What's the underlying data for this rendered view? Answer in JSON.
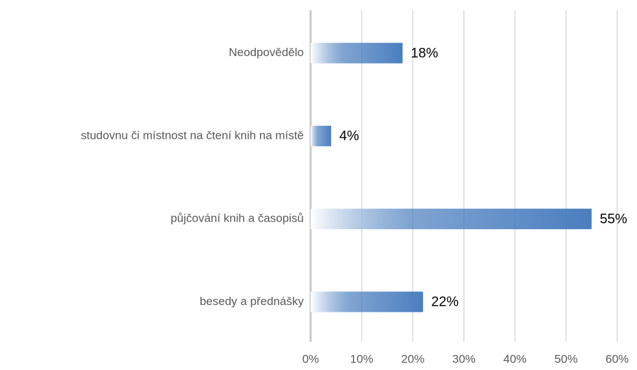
{
  "chart_data": {
    "type": "barh",
    "categories": [
      "Neodpovědělo",
      "studovnu či místnost na čtení knih na místě",
      "půjčování knih a časopisů",
      "besedy a přednášky"
    ],
    "values": [
      18,
      4,
      55,
      22
    ],
    "value_labels": [
      "18%",
      "4%",
      "55%",
      "22%"
    ],
    "color": "#4a7ebf",
    "xlim": [
      0,
      60
    ],
    "xticks": [
      {
        "value": 0,
        "label": "0%"
      },
      {
        "value": 10,
        "label": "10%"
      },
      {
        "value": 20,
        "label": "20%"
      },
      {
        "value": 30,
        "label": "30%"
      },
      {
        "value": 40,
        "label": "40%"
      },
      {
        "value": 50,
        "label": "50%"
      },
      {
        "value": 60,
        "label": "60%"
      }
    ],
    "grid": true
  }
}
